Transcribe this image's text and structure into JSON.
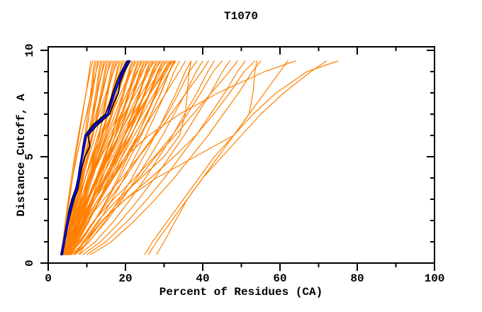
{
  "chart_data": {
    "type": "line",
    "title": "T1070",
    "xlabel": "Percent of Residues (CA)",
    "ylabel": "Distance Cutoff, A",
    "xlim": [
      0,
      100
    ],
    "ylim": [
      0,
      10.17
    ],
    "grid": false,
    "legend": "none",
    "x_ticks": {
      "major": [
        0,
        20,
        40,
        60,
        80,
        100
      ],
      "minor": [
        10,
        30,
        50,
        70,
        90
      ]
    },
    "y_ticks": {
      "major": [
        0,
        5,
        10
      ],
      "minor": [
        1,
        2,
        3,
        4,
        6,
        7,
        8,
        9
      ]
    },
    "colors": {
      "background": "#ffffff",
      "axis": "#000000",
      "models": "#ff8000",
      "highlight": "#0000dd",
      "highlight_companion": "#000000"
    },
    "cutoffs_coarse": [
      0.4,
      1,
      2,
      3,
      4,
      5,
      6,
      7,
      8,
      9,
      9.5
    ],
    "cutoffs_fine": [
      0.4,
      0.5,
      1,
      1.5,
      2,
      2.5,
      3,
      3.5,
      4,
      4.5,
      5,
      5.5,
      6,
      6.5,
      7,
      7.5,
      8,
      8.5,
      9,
      9.5
    ],
    "orange_models": [
      [
        3.2,
        3.8,
        4.6,
        5.5,
        6.3,
        7.1,
        8.0,
        8.9,
        9.8,
        10.6,
        11.0
      ],
      [
        3.6,
        3.9,
        4.5,
        5.2,
        6.0,
        6.8,
        7.8,
        8.8,
        9.8,
        10.9,
        11.5
      ],
      [
        4.0,
        5.0,
        6.1,
        7.0,
        7.9,
        8.7,
        9.5,
        10.2,
        11.0,
        11.6,
        12.0
      ],
      [
        4.4,
        4.8,
        5.6,
        6.6,
        7.8,
        8.8,
        9.8,
        10.6,
        11.3,
        11.9,
        12.4
      ],
      [
        4.8,
        5.4,
        6.2,
        7.1,
        8.0,
        8.8,
        9.8,
        10.6,
        11.5,
        12.4,
        12.8
      ],
      [
        3.4,
        3.8,
        4.5,
        5.4,
        6.3,
        7.4,
        8.6,
        9.9,
        11.1,
        12.4,
        13.2
      ],
      [
        3.8,
        5.0,
        6.4,
        7.5,
        8.6,
        9.6,
        10.6,
        11.4,
        12.3,
        13.1,
        13.6
      ],
      [
        4.2,
        4.7,
        5.7,
        6.9,
        8.3,
        9.6,
        10.8,
        11.8,
        12.6,
        13.4,
        14.0
      ],
      [
        4.6,
        5.3,
        6.4,
        7.4,
        8.5,
        9.5,
        10.7,
        11.8,
        12.8,
        13.9,
        14.4
      ],
      [
        5.0,
        5.4,
        6.1,
        7.0,
        7.9,
        9.0,
        10.2,
        11.5,
        12.7,
        14.0,
        14.8
      ],
      [
        3.2,
        4.6,
        6.3,
        7.8,
        9.1,
        10.3,
        11.5,
        12.6,
        13.6,
        14.6,
        15.2
      ],
      [
        3.6,
        4.2,
        5.4,
        7.0,
        8.6,
        10.2,
        11.6,
        12.8,
        13.9,
        14.9,
        15.6
      ],
      [
        4.0,
        4.8,
        6.2,
        7.5,
        8.8,
        10.0,
        11.4,
        12.8,
        14.1,
        15.4,
        16.0
      ],
      [
        4.4,
        4.9,
        5.7,
        6.8,
        8.0,
        9.3,
        10.8,
        12.3,
        13.9,
        15.4,
        16.4
      ],
      [
        4.8,
        6.2,
        7.9,
        9.4,
        10.7,
        11.9,
        13.1,
        14.2,
        15.2,
        16.2,
        16.8
      ],
      [
        5.2,
        5.8,
        7.0,
        8.6,
        10.2,
        11.8,
        13.2,
        14.4,
        15.5,
        16.5,
        17.2
      ],
      [
        3.3,
        4.3,
        5.9,
        7.4,
        9.0,
        10.5,
        12.2,
        13.7,
        15.3,
        16.9,
        17.6
      ],
      [
        3.7,
        4.3,
        5.3,
        6.6,
        8.0,
        9.6,
        11.3,
        13.1,
        15.0,
        16.9,
        18.0
      ],
      [
        4.1,
        5.8,
        7.8,
        9.5,
        11.1,
        12.5,
        14.0,
        15.3,
        16.5,
        17.7,
        18.4
      ],
      [
        4.5,
        5.2,
        6.6,
        8.5,
        10.5,
        12.4,
        14.1,
        15.5,
        16.8,
        17.9,
        18.8
      ],
      [
        4.9,
        5.9,
        7.5,
        9.0,
        10.6,
        12.1,
        13.8,
        15.3,
        16.9,
        18.5,
        19.2
      ],
      [
        5.3,
        5.9,
        6.9,
        8.2,
        9.6,
        11.2,
        12.9,
        14.7,
        16.6,
        18.5,
        19.6
      ],
      [
        3.4,
        5.4,
        7.7,
        9.7,
        11.5,
        13.2,
        14.9,
        16.3,
        17.8,
        19.2,
        20.0
      ],
      [
        3.8,
        4.6,
        6.3,
        8.4,
        10.8,
        12.9,
        14.9,
        16.6,
        18.1,
        19.4,
        20.4
      ],
      [
        4.2,
        5.4,
        7.2,
        9.0,
        10.8,
        12.5,
        14.5,
        16.3,
        18.1,
        20.0,
        20.8
      ],
      [
        4.6,
        5.3,
        6.4,
        7.9,
        9.6,
        11.4,
        13.4,
        15.6,
        17.7,
        19.9,
        21.2
      ],
      [
        5.0,
        7.0,
        9.3,
        11.3,
        13.1,
        14.8,
        16.5,
        17.9,
        19.4,
        20.8,
        21.6
      ],
      [
        5.4,
        6.2,
        7.9,
        10.0,
        12.4,
        14.5,
        16.5,
        18.2,
        19.7,
        21.0,
        22.0
      ],
      [
        3.5,
        4.8,
        6.9,
        9.0,
        11.1,
        13.0,
        15.2,
        17.3,
        19.4,
        21.5,
        22.4
      ],
      [
        3.9,
        4.7,
        6.0,
        7.7,
        9.6,
        11.6,
        13.9,
        16.4,
        18.8,
        21.3,
        22.8
      ],
      [
        4.3,
        6.6,
        9.2,
        11.5,
        13.6,
        15.5,
        17.3,
        19.0,
        20.7,
        22.3,
        23.2
      ],
      [
        4.7,
        5.6,
        7.5,
        10.0,
        12.6,
        15.1,
        17.4,
        19.3,
        21.0,
        22.5,
        23.6
      ],
      [
        5.1,
        6.4,
        8.5,
        10.6,
        12.7,
        14.6,
        16.8,
        18.9,
        21.0,
        23.1,
        24.0
      ],
      [
        5.5,
        6.3,
        7.6,
        9.3,
        11.2,
        13.2,
        15.5,
        18.0,
        20.4,
        22.9,
        24.4
      ],
      [
        3.6,
        6.1,
        9.1,
        11.7,
        14.0,
        16.1,
        18.2,
        20.1,
        22.0,
        23.7,
        24.8
      ],
      [
        4.0,
        5.1,
        7.2,
        9.9,
        12.9,
        15.7,
        18.2,
        20.3,
        22.2,
        23.9,
        25.2
      ],
      [
        4.4,
        5.9,
        8.2,
        10.5,
        12.9,
        15.0,
        17.5,
        19.9,
        22.2,
        24.5,
        25.6
      ],
      [
        4.8,
        5.6,
        7.1,
        9.0,
        11.2,
        13.5,
        16.0,
        18.8,
        21.5,
        24.3,
        26.0
      ],
      [
        5.2,
        7.7,
        10.7,
        13.3,
        15.6,
        17.7,
        19.8,
        21.7,
        23.6,
        25.3,
        26.4
      ],
      [
        5.6,
        6.7,
        8.8,
        11.5,
        14.5,
        17.3,
        19.8,
        21.9,
        23.8,
        25.5,
        26.8
      ],
      [
        3.7,
        5.3,
        7.9,
        10.5,
        13.1,
        15.5,
        18.3,
        20.9,
        23.4,
        26.0,
        27.2
      ],
      [
        4.1,
        5.0,
        6.7,
        8.8,
        11.2,
        13.7,
        16.6,
        19.6,
        22.7,
        25.7,
        27.6
      ],
      [
        4.5,
        7.3,
        10.6,
        13.4,
        16.0,
        18.4,
        20.7,
        22.8,
        24.9,
        26.8,
        28.0
      ],
      [
        4.9,
        6.1,
        8.4,
        11.5,
        14.8,
        17.8,
        20.6,
        23.0,
        25.1,
        27.0,
        28.4
      ],
      [
        5.3,
        6.9,
        9.5,
        12.1,
        14.7,
        17.1,
        19.9,
        22.5,
        25.0,
        27.6,
        28.8
      ],
      [
        5.7,
        6.6,
        8.3,
        10.4,
        12.8,
        15.3,
        18.2,
        21.2,
        24.3,
        27.3,
        29.2
      ],
      [
        3.8,
        6.9,
        10.5,
        13.6,
        16.4,
        19.0,
        21.6,
        23.9,
        26.2,
        28.3,
        29.6
      ],
      [
        4.2,
        5.5,
        8.1,
        11.4,
        15.0,
        18.4,
        21.5,
        24.1,
        26.4,
        28.5,
        30.0
      ],
      [
        4.6,
        6.4,
        9.2,
        12.1,
        14.9,
        17.5,
        20.6,
        23.4,
        26.3,
        29.1,
        30.4
      ],
      [
        5.0,
        6.0,
        7.8,
        10.2,
        12.7,
        15.6,
        18.7,
        22.0,
        25.4,
        28.7,
        30.8
      ],
      [
        5.4,
        8.5,
        12.1,
        15.2,
        18.0,
        20.6,
        23.2,
        25.5,
        27.8,
        29.9,
        31.2
      ],
      [
        5.8,
        7.1,
        9.7,
        13.0,
        16.6,
        20.0,
        23.1,
        25.7,
        28.0,
        30.1,
        31.6
      ],
      [
        4.0,
        6.0,
        9.0,
        12.1,
        15.2,
        18.0,
        21.4,
        24.4,
        27.5,
        30.6,
        32.0
      ],
      [
        4.4,
        5.5,
        7.5,
        10.0,
        12.8,
        15.9,
        19.2,
        22.9,
        26.5,
        30.2,
        32.4
      ],
      [
        4.8,
        8.2,
        12.1,
        15.4,
        18.5,
        21.3,
        24.1,
        26.6,
        29.2,
        31.4,
        32.8
      ],
      [
        5.2,
        6.6,
        9.4,
        13.0,
        16.9,
        20.5,
        23.8,
        26.6,
        29.1,
        31.3,
        33.0
      ],
      [
        5.6,
        7.5,
        10.5,
        13.4,
        16.4,
        19.1,
        22.3,
        25.3,
        28.3,
        31.3,
        32.6
      ],
      [
        6.0,
        7.0,
        8.8,
        11.2,
        13.8,
        16.6,
        19.7,
        23.1,
        26.5,
        29.8,
        31.9
      ],
      [
        6.0,
        9.4,
        13.3,
        16.6,
        19.7,
        22.5,
        25.3,
        27.8,
        30.4,
        32.6,
        34.0
      ],
      [
        4.5,
        6.7,
        10.1,
        13.5,
        16.9,
        20.0,
        23.7,
        27.1,
        30.5,
        33.9,
        35.5
      ],
      [
        7.0,
        10.6,
        14.8,
        18.4,
        21.7,
        24.7,
        27.7,
        30.4,
        33.1,
        35.5,
        37.0
      ],
      [
        5.0,
        6.7,
        10.0,
        14.4,
        19.1,
        23.4,
        27.4,
        30.8,
        33.8,
        36.5,
        38.5
      ],
      [
        6.5,
        10.5,
        15.2,
        19.2,
        22.9,
        26.3,
        29.6,
        32.6,
        35.6,
        38.3,
        40.0
      ],
      [
        5.5,
        8.0,
        12.0,
        15.9,
        19.9,
        23.5,
        27.8,
        31.8,
        35.7,
        39.7,
        41.5
      ],
      [
        8.0,
        12.2,
        17.1,
        21.3,
        25.2,
        28.7,
        32.2,
        35.3,
        38.5,
        41.3,
        43.0
      ],
      [
        6.0,
        8.0,
        11.9,
        16.9,
        22.4,
        27.5,
        32.1,
        36.0,
        39.5,
        42.7,
        45.0
      ],
      [
        9.0,
        13.6,
        18.9,
        23.4,
        27.6,
        31.4,
        35.2,
        38.6,
        42.1,
        45.1,
        47.0
      ],
      [
        6.5,
        9.5,
        14.2,
        18.8,
        23.5,
        27.8,
        32.9,
        37.5,
        42.2,
        46.9,
        49.0
      ],
      [
        10.0,
        14.9,
        20.7,
        25.6,
        30.1,
        34.2,
        38.3,
        42.0,
        45.7,
        49.0,
        51.0
      ],
      [
        7.0,
        9.3,
        14.0,
        20.0,
        26.5,
        32.6,
        38.2,
        42.8,
        47.0,
        50.7,
        53.5
      ],
      [
        11.0,
        16.3,
        22.4,
        27.7,
        32.6,
        37.0,
        41.4,
        45.3,
        49.3,
        52.8,
        55.0
      ],
      [
        7.0,
        9.0,
        13.0,
        18.0,
        24.0,
        30.0,
        34.0,
        35.5,
        36.0,
        36.5,
        37.0
      ],
      [
        8.0,
        10.0,
        14.0,
        20.0,
        28.0,
        38.0,
        48.0,
        52.0,
        53.0,
        53.5,
        54.0
      ],
      [
        25.0,
        27.0,
        31.0,
        35.0,
        39.0,
        43.0,
        48.0,
        53.0,
        59.0,
        67.0,
        75.0
      ],
      [
        26.0,
        28.0,
        32.0,
        36.0,
        40.0,
        45.0,
        50.0,
        55.0,
        61.0,
        68.0,
        72.0
      ],
      [
        5.0,
        6.0,
        9.0,
        12.0,
        16.0,
        20.0,
        26.0,
        34.0,
        44.0,
        56.0,
        64.0
      ],
      [
        28.0,
        30.0,
        33.0,
        36.0,
        40.0,
        44.0,
        48.0,
        52.0,
        56.0,
        60.0,
        62.0
      ]
    ],
    "black_models": [
      [
        3.3,
        3.4,
        3.9,
        4.4,
        4.9,
        5.4,
        6.1,
        7.1,
        7.7,
        8.1,
        8.6,
        9.0,
        9.5,
        11.6,
        14.8,
        15.9,
        16.7,
        17.7,
        18.9,
        20.4
      ],
      [
        3.7,
        3.8,
        4.3,
        4.8,
        5.3,
        6.0,
        6.7,
        7.7,
        8.2,
        8.7,
        9.5,
        10.8,
        10.3,
        12.8,
        15.9,
        16.9,
        18.2,
        18.6,
        19.7,
        21.2
      ]
    ],
    "blue_model": [
      3.5,
      3.6,
      4.1,
      4.6,
      5.1,
      5.7,
      6.4,
      7.4,
      7.9,
      8.3,
      8.8,
      9.3,
      9.8,
      12.2,
      15.4,
      16.3,
      17.2,
      18.2,
      19.3,
      20.8
    ]
  }
}
